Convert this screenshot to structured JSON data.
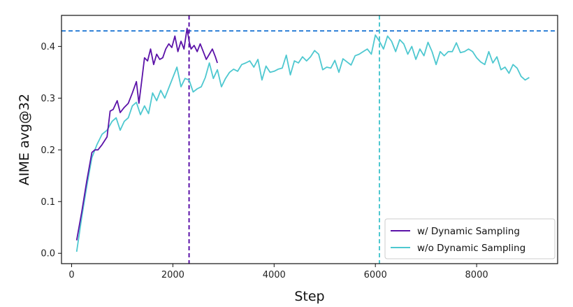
{
  "chart_data": {
    "type": "line",
    "title": "",
    "xlabel": "Step",
    "ylabel": "AIME avg@32",
    "xlim": [
      -200,
      9600
    ],
    "ylim": [
      -0.02,
      0.46
    ],
    "x_ticks": [
      0,
      2000,
      4000,
      6000,
      8000
    ],
    "x_tick_labels": [
      "0",
      "2000",
      "4000",
      "6000",
      "8000"
    ],
    "y_ticks": [
      0.0,
      0.1,
      0.2,
      0.3,
      0.4
    ],
    "y_tick_labels": [
      "0.0",
      "0.1",
      "0.2",
      "0.3",
      "0.4"
    ],
    "grid": false,
    "legend_position": "lower-right",
    "reference_lines": {
      "horizontal": {
        "y": 0.43,
        "color": "#1f77d4",
        "style": "dashed"
      },
      "vertical": [
        {
          "x": 2320,
          "color": "#5b12a8",
          "style": "dashed"
        },
        {
          "x": 6080,
          "color": "#4ec8d0",
          "style": "dashed"
        }
      ]
    },
    "series": [
      {
        "name": "w/ Dynamic Sampling",
        "color": "#5b12a8",
        "x": [
          100,
          200,
          300,
          400,
          460,
          520,
          600,
          700,
          760,
          820,
          900,
          960,
          1040,
          1120,
          1200,
          1280,
          1330,
          1380,
          1440,
          1500,
          1560,
          1620,
          1680,
          1740,
          1800,
          1860,
          1920,
          1980,
          2040,
          2100,
          2160,
          2220,
          2280,
          2320,
          2360,
          2420,
          2480,
          2540,
          2600,
          2660,
          2720,
          2780,
          2840,
          2880
        ],
        "values": [
          0.025,
          0.08,
          0.14,
          0.195,
          0.2,
          0.2,
          0.21,
          0.225,
          0.275,
          0.278,
          0.295,
          0.272,
          0.282,
          0.29,
          0.31,
          0.332,
          0.29,
          0.33,
          0.378,
          0.372,
          0.395,
          0.365,
          0.385,
          0.375,
          0.378,
          0.395,
          0.405,
          0.398,
          0.42,
          0.39,
          0.41,
          0.395,
          0.435,
          0.41,
          0.395,
          0.402,
          0.39,
          0.405,
          0.39,
          0.375,
          0.385,
          0.395,
          0.38,
          0.368
        ]
      },
      {
        "name": "w/o Dynamic Sampling",
        "color": "#4ec8d0",
        "x": [
          100,
          200,
          300,
          400,
          500,
          600,
          700,
          800,
          880,
          960,
          1040,
          1120,
          1200,
          1280,
          1360,
          1440,
          1520,
          1600,
          1680,
          1760,
          1840,
          1920,
          2000,
          2080,
          2160,
          2240,
          2320,
          2400,
          2480,
          2560,
          2640,
          2720,
          2800,
          2880,
          2960,
          3040,
          3120,
          3200,
          3280,
          3360,
          3440,
          3520,
          3600,
          3680,
          3760,
          3840,
          3920,
          4000,
          4080,
          4160,
          4240,
          4320,
          4400,
          4480,
          4560,
          4640,
          4720,
          4800,
          4880,
          4960,
          5040,
          5120,
          5200,
          5280,
          5360,
          5440,
          5520,
          5600,
          5680,
          5760,
          5840,
          5920,
          6000,
          6080,
          6160,
          6240,
          6320,
          6400,
          6480,
          6560,
          6640,
          6720,
          6800,
          6880,
          6960,
          7040,
          7120,
          7200,
          7280,
          7360,
          7440,
          7520,
          7600,
          7680,
          7760,
          7840,
          7920,
          8000,
          8080,
          8160,
          8240,
          8320,
          8400,
          8480,
          8560,
          8640,
          8720,
          8800,
          8880,
          8960,
          9040
        ],
        "values": [
          0.003,
          0.07,
          0.13,
          0.185,
          0.21,
          0.23,
          0.238,
          0.255,
          0.262,
          0.238,
          0.255,
          0.262,
          0.285,
          0.292,
          0.268,
          0.285,
          0.27,
          0.31,
          0.295,
          0.315,
          0.3,
          0.32,
          0.34,
          0.36,
          0.322,
          0.338,
          0.335,
          0.312,
          0.318,
          0.322,
          0.34,
          0.368,
          0.338,
          0.355,
          0.322,
          0.338,
          0.35,
          0.356,
          0.352,
          0.365,
          0.368,
          0.372,
          0.36,
          0.375,
          0.335,
          0.362,
          0.35,
          0.352,
          0.356,
          0.358,
          0.383,
          0.345,
          0.372,
          0.368,
          0.38,
          0.372,
          0.38,
          0.392,
          0.385,
          0.355,
          0.36,
          0.358,
          0.373,
          0.35,
          0.376,
          0.37,
          0.364,
          0.382,
          0.385,
          0.39,
          0.395,
          0.385,
          0.422,
          0.41,
          0.395,
          0.42,
          0.41,
          0.39,
          0.413,
          0.405,
          0.385,
          0.4,
          0.375,
          0.395,
          0.382,
          0.408,
          0.39,
          0.365,
          0.39,
          0.382,
          0.39,
          0.39,
          0.407,
          0.388,
          0.39,
          0.395,
          0.39,
          0.378,
          0.37,
          0.365,
          0.39,
          0.368,
          0.38,
          0.355,
          0.36,
          0.348,
          0.365,
          0.358,
          0.342,
          0.335,
          0.34
        ]
      }
    ]
  }
}
